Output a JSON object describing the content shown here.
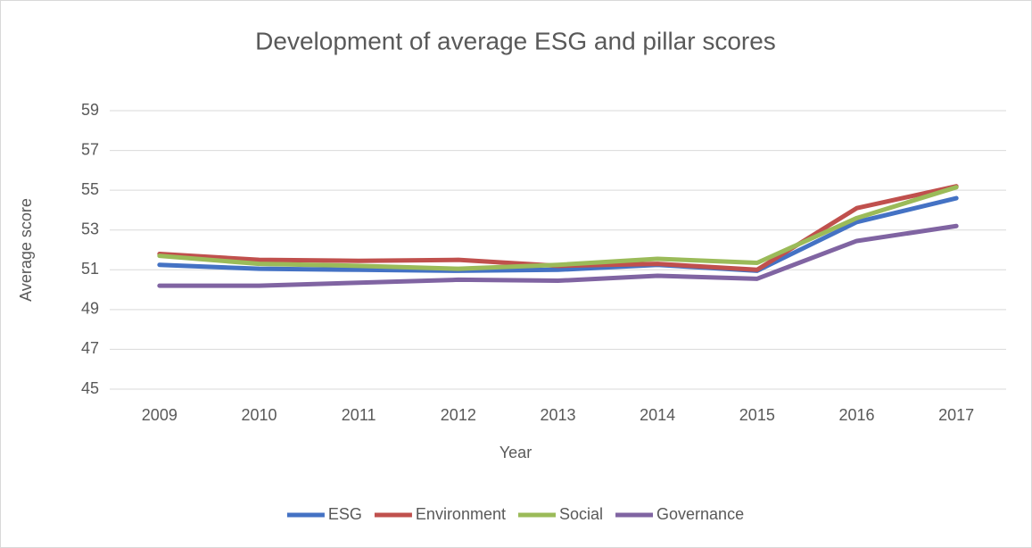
{
  "chart_data": {
    "type": "line",
    "title": "Development of average ESG and pillar scores",
    "x_label": "Year",
    "y_label": "Average score",
    "categories": [
      "2009",
      "2010",
      "2011",
      "2012",
      "2013",
      "2014",
      "2015",
      "2016",
      "2017"
    ],
    "series": [
      {
        "name": "ESG",
        "color": "#4472c4",
        "values": [
          51.25,
          51.05,
          51.0,
          50.95,
          51.0,
          51.25,
          50.95,
          53.4,
          54.6
        ]
      },
      {
        "name": "Environment",
        "color": "#c0504d",
        "values": [
          51.8,
          51.5,
          51.45,
          51.5,
          51.2,
          51.3,
          51.0,
          54.1,
          55.2
        ]
      },
      {
        "name": "Social",
        "color": "#9bbb59",
        "values": [
          51.7,
          51.3,
          51.2,
          51.05,
          51.25,
          51.55,
          51.35,
          53.6,
          55.15
        ]
      },
      {
        "name": "Governance",
        "color": "#8064a2",
        "values": [
          50.2,
          50.2,
          50.35,
          50.5,
          50.45,
          50.7,
          50.55,
          52.45,
          53.2
        ]
      }
    ],
    "ylim": [
      45,
      59
    ],
    "yticks": [
      45,
      47,
      49,
      51,
      53,
      55,
      57,
      59
    ],
    "grid": true,
    "legend": "bottom"
  }
}
